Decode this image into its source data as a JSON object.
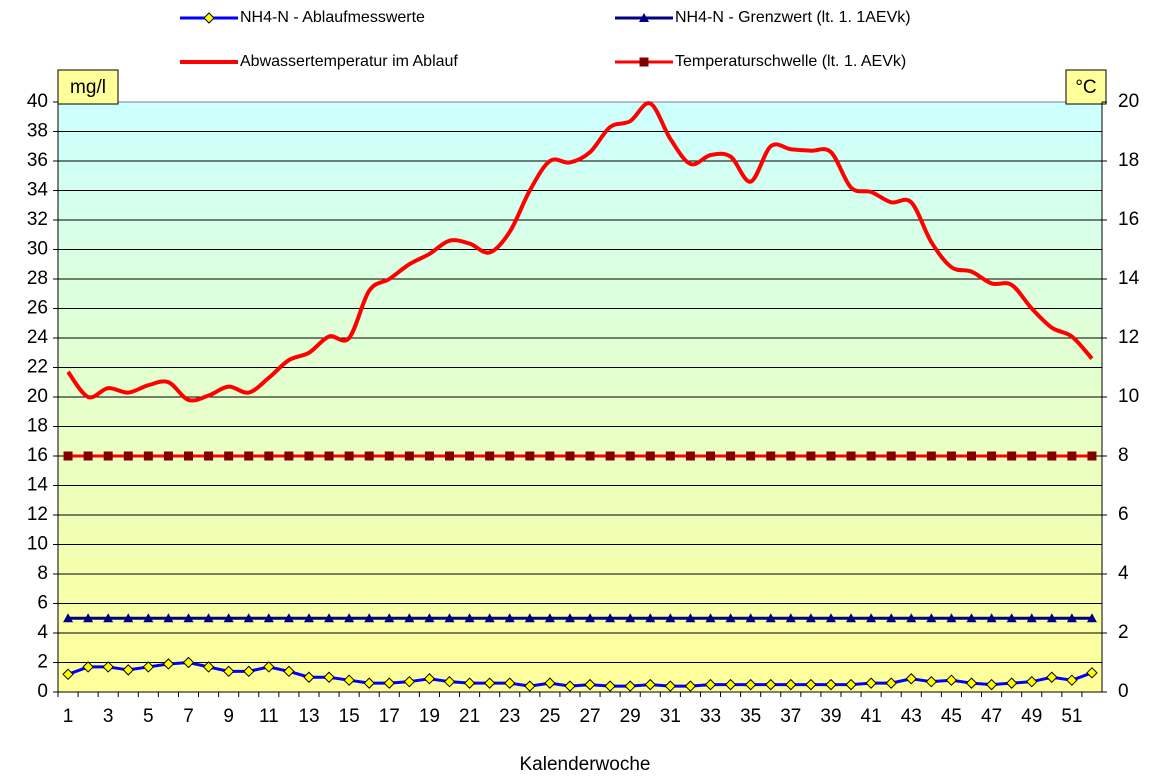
{
  "chart_data": {
    "type": "line",
    "x_label": "Kalenderwoche",
    "y_label": "mg/l",
    "y2_label": "°C",
    "categories": [
      1,
      null,
      3,
      null,
      5,
      null,
      7,
      null,
      9,
      null,
      11,
      null,
      13,
      null,
      15,
      null,
      17,
      null,
      19,
      null,
      21,
      null,
      23,
      null,
      25,
      null,
      27,
      null,
      29,
      null,
      31,
      null,
      33,
      null,
      35,
      null,
      37,
      null,
      39,
      null,
      41,
      null,
      43,
      null,
      45,
      null,
      47,
      null,
      49,
      null,
      51,
      null
    ],
    "ylim": [
      0,
      40
    ],
    "yticks": [
      0,
      2,
      4,
      6,
      8,
      10,
      12,
      14,
      16,
      18,
      20,
      22,
      24,
      26,
      28,
      30,
      32,
      34,
      36,
      38,
      40
    ],
    "y2lim": [
      0,
      20
    ],
    "y2ticks": [
      0,
      2,
      4,
      6,
      8,
      10,
      12,
      14,
      16,
      18,
      20
    ],
    "grid": true,
    "legend": "top",
    "series": [
      {
        "name": "NH4-N - Ablaufmesswerte",
        "color": "#0000ff",
        "marker": "diamond",
        "marker_color": "#ffff00",
        "values": [
          1.2,
          1.7,
          1.7,
          1.5,
          1.7,
          1.9,
          2.0,
          1.7,
          1.4,
          1.4,
          1.7,
          1.4,
          1.0,
          1.0,
          0.8,
          0.6,
          0.6,
          0.7,
          0.9,
          0.7,
          0.6,
          0.6,
          0.6,
          0.4,
          0.6,
          0.4,
          0.5,
          0.4,
          0.4,
          0.5,
          0.4,
          0.4,
          0.5,
          0.5,
          0.5,
          0.5,
          0.5,
          0.5,
          0.5,
          0.5,
          0.6,
          0.6,
          0.9,
          0.7,
          0.8,
          0.6,
          0.5,
          0.6,
          0.7,
          1.0,
          0.8,
          1.3
        ]
      },
      {
        "name": "NH4-N - Grenzwert (lt. 1. 1AEVk)",
        "color": "#000080",
        "marker": "triangle",
        "marker_color": "#000080",
        "values": [
          5,
          5,
          5,
          5,
          5,
          5,
          5,
          5,
          5,
          5,
          5,
          5,
          5,
          5,
          5,
          5,
          5,
          5,
          5,
          5,
          5,
          5,
          5,
          5,
          5,
          5,
          5,
          5,
          5,
          5,
          5,
          5,
          5,
          5,
          5,
          5,
          5,
          5,
          5,
          5,
          5,
          5,
          5,
          5,
          5,
          5,
          5,
          5,
          5,
          5,
          5,
          5
        ]
      },
      {
        "name": "Abwassertemperatur im Ablauf",
        "color": "#ff0000",
        "axis": "y2",
        "smooth": true,
        "values": [
          10.85,
          10.0,
          10.3,
          10.15,
          10.4,
          10.5,
          9.9,
          10.05,
          10.35,
          10.15,
          10.65,
          11.25,
          11.5,
          12.05,
          12.0,
          13.6,
          14.0,
          14.5,
          14.85,
          15.3,
          15.2,
          14.9,
          15.6,
          17.0,
          18.0,
          17.95,
          18.3,
          19.15,
          19.35,
          19.95,
          18.75,
          17.9,
          18.2,
          18.15,
          17.3,
          18.5,
          18.4,
          18.35,
          18.3,
          17.1,
          16.95,
          16.6,
          16.6,
          15.25,
          14.4,
          14.25,
          13.85,
          13.8,
          13.0,
          12.35,
          12.05,
          11.3
        ]
      },
      {
        "name": "Temperaturschwelle (lt. 1. AEVk)",
        "color": "#ff0000",
        "axis": "y2",
        "marker": "square",
        "marker_color": "#800000",
        "values": [
          8,
          8,
          8,
          8,
          8,
          8,
          8,
          8,
          8,
          8,
          8,
          8,
          8,
          8,
          8,
          8,
          8,
          8,
          8,
          8,
          8,
          8,
          8,
          8,
          8,
          8,
          8,
          8,
          8,
          8,
          8,
          8,
          8,
          8,
          8,
          8,
          8,
          8,
          8,
          8,
          8,
          8,
          8,
          8,
          8,
          8,
          8,
          8,
          8,
          8,
          8,
          8
        ]
      }
    ]
  }
}
